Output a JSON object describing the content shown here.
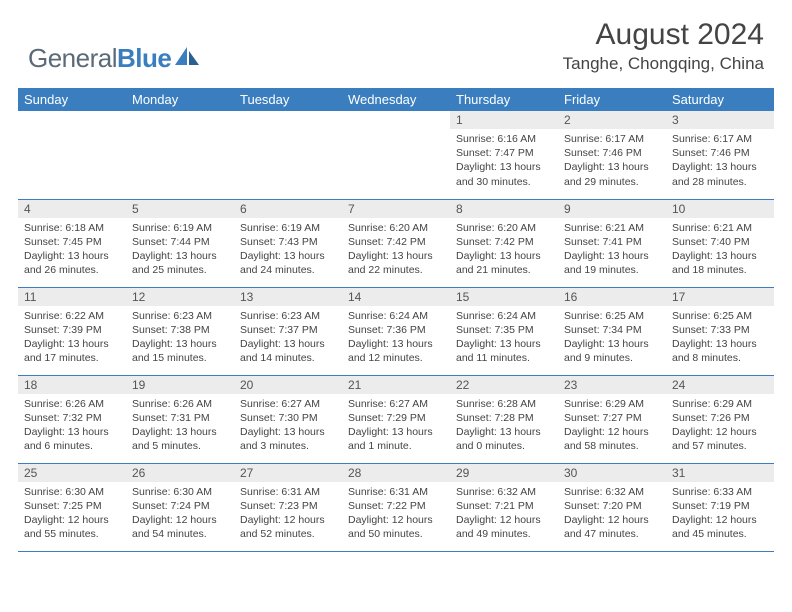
{
  "branding": {
    "logo_text_1": "General",
    "logo_text_2": "Blue",
    "logo_color_gray": "#5b6a78",
    "logo_color_blue": "#3a7ebf"
  },
  "header": {
    "title": "August 2024",
    "location": "Tanghe, Chongqing, China"
  },
  "colors": {
    "header_bg": "#3a7ebf",
    "header_text": "#ffffff",
    "daynum_bg": "#ececec",
    "daynum_text": "#555555",
    "body_text": "#444444",
    "row_border": "#3a7ebf",
    "background": "#ffffff"
  },
  "fonts": {
    "title_size": 30,
    "location_size": 17,
    "dayheader_size": 13,
    "daynum_size": 12,
    "cell_size": 10.5
  },
  "day_headers": [
    "Sunday",
    "Monday",
    "Tuesday",
    "Wednesday",
    "Thursday",
    "Friday",
    "Saturday"
  ],
  "weeks": [
    [
      null,
      null,
      null,
      null,
      {
        "n": "1",
        "sr": "6:16 AM",
        "ss": "7:47 PM",
        "dl": "13 hours and 30 minutes."
      },
      {
        "n": "2",
        "sr": "6:17 AM",
        "ss": "7:46 PM",
        "dl": "13 hours and 29 minutes."
      },
      {
        "n": "3",
        "sr": "6:17 AM",
        "ss": "7:46 PM",
        "dl": "13 hours and 28 minutes."
      }
    ],
    [
      {
        "n": "4",
        "sr": "6:18 AM",
        "ss": "7:45 PM",
        "dl": "13 hours and 26 minutes."
      },
      {
        "n": "5",
        "sr": "6:19 AM",
        "ss": "7:44 PM",
        "dl": "13 hours and 25 minutes."
      },
      {
        "n": "6",
        "sr": "6:19 AM",
        "ss": "7:43 PM",
        "dl": "13 hours and 24 minutes."
      },
      {
        "n": "7",
        "sr": "6:20 AM",
        "ss": "7:42 PM",
        "dl": "13 hours and 22 minutes."
      },
      {
        "n": "8",
        "sr": "6:20 AM",
        "ss": "7:42 PM",
        "dl": "13 hours and 21 minutes."
      },
      {
        "n": "9",
        "sr": "6:21 AM",
        "ss": "7:41 PM",
        "dl": "13 hours and 19 minutes."
      },
      {
        "n": "10",
        "sr": "6:21 AM",
        "ss": "7:40 PM",
        "dl": "13 hours and 18 minutes."
      }
    ],
    [
      {
        "n": "11",
        "sr": "6:22 AM",
        "ss": "7:39 PM",
        "dl": "13 hours and 17 minutes."
      },
      {
        "n": "12",
        "sr": "6:23 AM",
        "ss": "7:38 PM",
        "dl": "13 hours and 15 minutes."
      },
      {
        "n": "13",
        "sr": "6:23 AM",
        "ss": "7:37 PM",
        "dl": "13 hours and 14 minutes."
      },
      {
        "n": "14",
        "sr": "6:24 AM",
        "ss": "7:36 PM",
        "dl": "13 hours and 12 minutes."
      },
      {
        "n": "15",
        "sr": "6:24 AM",
        "ss": "7:35 PM",
        "dl": "13 hours and 11 minutes."
      },
      {
        "n": "16",
        "sr": "6:25 AM",
        "ss": "7:34 PM",
        "dl": "13 hours and 9 minutes."
      },
      {
        "n": "17",
        "sr": "6:25 AM",
        "ss": "7:33 PM",
        "dl": "13 hours and 8 minutes."
      }
    ],
    [
      {
        "n": "18",
        "sr": "6:26 AM",
        "ss": "7:32 PM",
        "dl": "13 hours and 6 minutes."
      },
      {
        "n": "19",
        "sr": "6:26 AM",
        "ss": "7:31 PM",
        "dl": "13 hours and 5 minutes."
      },
      {
        "n": "20",
        "sr": "6:27 AM",
        "ss": "7:30 PM",
        "dl": "13 hours and 3 minutes."
      },
      {
        "n": "21",
        "sr": "6:27 AM",
        "ss": "7:29 PM",
        "dl": "13 hours and 1 minute."
      },
      {
        "n": "22",
        "sr": "6:28 AM",
        "ss": "7:28 PM",
        "dl": "13 hours and 0 minutes."
      },
      {
        "n": "23",
        "sr": "6:29 AM",
        "ss": "7:27 PM",
        "dl": "12 hours and 58 minutes."
      },
      {
        "n": "24",
        "sr": "6:29 AM",
        "ss": "7:26 PM",
        "dl": "12 hours and 57 minutes."
      }
    ],
    [
      {
        "n": "25",
        "sr": "6:30 AM",
        "ss": "7:25 PM",
        "dl": "12 hours and 55 minutes."
      },
      {
        "n": "26",
        "sr": "6:30 AM",
        "ss": "7:24 PM",
        "dl": "12 hours and 54 minutes."
      },
      {
        "n": "27",
        "sr": "6:31 AM",
        "ss": "7:23 PM",
        "dl": "12 hours and 52 minutes."
      },
      {
        "n": "28",
        "sr": "6:31 AM",
        "ss": "7:22 PM",
        "dl": "12 hours and 50 minutes."
      },
      {
        "n": "29",
        "sr": "6:32 AM",
        "ss": "7:21 PM",
        "dl": "12 hours and 49 minutes."
      },
      {
        "n": "30",
        "sr": "6:32 AM",
        "ss": "7:20 PM",
        "dl": "12 hours and 47 minutes."
      },
      {
        "n": "31",
        "sr": "6:33 AM",
        "ss": "7:19 PM",
        "dl": "12 hours and 45 minutes."
      }
    ]
  ],
  "labels": {
    "sunrise": "Sunrise:",
    "sunset": "Sunset:",
    "daylight": "Daylight:"
  }
}
